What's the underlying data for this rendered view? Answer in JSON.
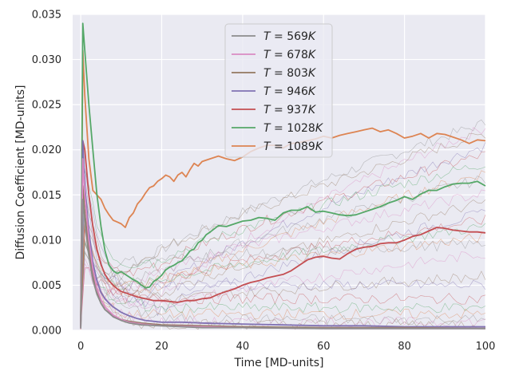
{
  "chart_data": {
    "type": "line",
    "title": "",
    "xlabel": "Time [MD-units]",
    "ylabel": "Diffusion Coefficient [MD-units]",
    "xlim": [
      -2,
      100
    ],
    "ylim": [
      0,
      0.035
    ],
    "xticks": [
      0,
      20,
      40,
      60,
      80,
      100
    ],
    "yticks": [
      0.0,
      0.005,
      0.01,
      0.015,
      0.02,
      0.025,
      0.03,
      0.035
    ],
    "xtick_labels": [
      "0",
      "20",
      "40",
      "60",
      "80",
      "100"
    ],
    "ytick_labels": [
      "0.000",
      "0.005",
      "0.010",
      "0.015",
      "0.020",
      "0.025",
      "0.030",
      "0.035"
    ],
    "grid": true,
    "background": "#eaeaf2",
    "legend_position": "top-center",
    "legend": [
      {
        "T": "569",
        "color": "#8c8c8c"
      },
      {
        "T": "678",
        "color": "#da8bc3"
      },
      {
        "T": "803",
        "color": "#937860"
      },
      {
        "T": "946",
        "color": "#8172b3"
      },
      {
        "T": "937",
        "color": "#c44e52"
      },
      {
        "T": "1028",
        "color": "#55a868"
      },
      {
        "T": "1089",
        "color": "#dd8452"
      }
    ],
    "series": [
      {
        "name": "T = 1089K",
        "color": "#dd8452",
        "points": [
          [
            0,
            0.0008
          ],
          [
            0.5,
            0.031
          ],
          [
            1,
            0.026
          ],
          [
            2,
            0.019
          ],
          [
            3,
            0.0155
          ],
          [
            4,
            0.015
          ],
          [
            5,
            0.0145
          ],
          [
            6,
            0.0135
          ],
          [
            7,
            0.0128
          ],
          [
            8,
            0.0122
          ],
          [
            9,
            0.012
          ],
          [
            10,
            0.0118
          ],
          [
            11,
            0.0114
          ],
          [
            12,
            0.0125
          ],
          [
            13,
            0.013
          ],
          [
            14,
            0.014
          ],
          [
            15,
            0.0145
          ],
          [
            16,
            0.0152
          ],
          [
            17,
            0.0158
          ],
          [
            18,
            0.016
          ],
          [
            19,
            0.0165
          ],
          [
            20,
            0.0168
          ],
          [
            21,
            0.0172
          ],
          [
            22,
            0.017
          ],
          [
            23,
            0.0165
          ],
          [
            24,
            0.0172
          ],
          [
            25,
            0.0175
          ],
          [
            26,
            0.017
          ],
          [
            27,
            0.0178
          ],
          [
            28,
            0.0185
          ],
          [
            29,
            0.0182
          ],
          [
            30,
            0.0187
          ],
          [
            32,
            0.019
          ],
          [
            34,
            0.0193
          ],
          [
            36,
            0.019
          ],
          [
            38,
            0.0188
          ],
          [
            40,
            0.0192
          ],
          [
            42,
            0.0198
          ],
          [
            44,
            0.0202
          ],
          [
            46,
            0.0205
          ],
          [
            48,
            0.0205
          ],
          [
            50,
            0.0202
          ],
          [
            52,
            0.0207
          ],
          [
            54,
            0.0208
          ],
          [
            56,
            0.021
          ],
          [
            58,
            0.0212
          ],
          [
            60,
            0.0215
          ],
          [
            62,
            0.0213
          ],
          [
            64,
            0.0216
          ],
          [
            66,
            0.0218
          ],
          [
            68,
            0.022
          ],
          [
            70,
            0.0222
          ],
          [
            72,
            0.0224
          ],
          [
            74,
            0.022
          ],
          [
            76,
            0.0222
          ],
          [
            78,
            0.0218
          ],
          [
            80,
            0.0213
          ],
          [
            82,
            0.0215
          ],
          [
            84,
            0.0218
          ],
          [
            86,
            0.0213
          ],
          [
            88,
            0.0218
          ],
          [
            90,
            0.0217
          ],
          [
            92,
            0.0214
          ],
          [
            94,
            0.0211
          ],
          [
            96,
            0.0207
          ],
          [
            98,
            0.0211
          ],
          [
            100,
            0.021
          ]
        ]
      },
      {
        "name": "T = 1028K",
        "color": "#55a868",
        "points": [
          [
            0,
            0.0005
          ],
          [
            0.5,
            0.034
          ],
          [
            1,
            0.031
          ],
          [
            2,
            0.025
          ],
          [
            3,
            0.02
          ],
          [
            4,
            0.015
          ],
          [
            5,
            0.0115
          ],
          [
            6,
            0.0088
          ],
          [
            7,
            0.0072
          ],
          [
            8,
            0.0066
          ],
          [
            9,
            0.0063
          ],
          [
            10,
            0.0065
          ],
          [
            11,
            0.0062
          ],
          [
            12,
            0.0059
          ],
          [
            13,
            0.0056
          ],
          [
            14,
            0.0054
          ],
          [
            15,
            0.005
          ],
          [
            16,
            0.0047
          ],
          [
            17,
            0.0048
          ],
          [
            18,
            0.0054
          ],
          [
            19,
            0.0057
          ],
          [
            20,
            0.0061
          ],
          [
            21,
            0.0067
          ],
          [
            22,
            0.007
          ],
          [
            23,
            0.0072
          ],
          [
            24,
            0.0075
          ],
          [
            25,
            0.0077
          ],
          [
            26,
            0.0082
          ],
          [
            27,
            0.0088
          ],
          [
            28,
            0.009
          ],
          [
            29,
            0.0097
          ],
          [
            30,
            0.01
          ],
          [
            31,
            0.0106
          ],
          [
            32,
            0.0109
          ],
          [
            34,
            0.0116
          ],
          [
            36,
            0.0115
          ],
          [
            38,
            0.0118
          ],
          [
            40,
            0.0121
          ],
          [
            42,
            0.0122
          ],
          [
            44,
            0.0125
          ],
          [
            46,
            0.0124
          ],
          [
            48,
            0.0122
          ],
          [
            50,
            0.013
          ],
          [
            52,
            0.0133
          ],
          [
            54,
            0.0133
          ],
          [
            56,
            0.0137
          ],
          [
            58,
            0.0131
          ],
          [
            60,
            0.0132
          ],
          [
            62,
            0.013
          ],
          [
            64,
            0.0128
          ],
          [
            66,
            0.0127
          ],
          [
            68,
            0.0128
          ],
          [
            70,
            0.0131
          ],
          [
            72,
            0.0134
          ],
          [
            74,
            0.0137
          ],
          [
            76,
            0.0141
          ],
          [
            78,
            0.0144
          ],
          [
            80,
            0.0148
          ],
          [
            82,
            0.0145
          ],
          [
            84,
            0.0151
          ],
          [
            86,
            0.0155
          ],
          [
            88,
            0.0155
          ],
          [
            90,
            0.0159
          ],
          [
            92,
            0.0162
          ],
          [
            94,
            0.0163
          ],
          [
            96,
            0.0163
          ],
          [
            98,
            0.0165
          ],
          [
            100,
            0.016
          ]
        ]
      },
      {
        "name": "T = 937K",
        "color": "#c44e52",
        "points": [
          [
            0,
            0.0005
          ],
          [
            0.5,
            0.021
          ],
          [
            1,
            0.02
          ],
          [
            2,
            0.015
          ],
          [
            3,
            0.0115
          ],
          [
            4,
            0.009
          ],
          [
            5,
            0.0073
          ],
          [
            6,
            0.0062
          ],
          [
            7,
            0.0055
          ],
          [
            8,
            0.005
          ],
          [
            9,
            0.0046
          ],
          [
            10,
            0.0043
          ],
          [
            12,
            0.004
          ],
          [
            14,
            0.0037
          ],
          [
            16,
            0.0035
          ],
          [
            18,
            0.0033
          ],
          [
            20,
            0.0033
          ],
          [
            22,
            0.0032
          ],
          [
            24,
            0.0031
          ],
          [
            26,
            0.0033
          ],
          [
            28,
            0.0033
          ],
          [
            30,
            0.0035
          ],
          [
            32,
            0.0036
          ],
          [
            34,
            0.004
          ],
          [
            36,
            0.0043
          ],
          [
            38,
            0.0046
          ],
          [
            40,
            0.005
          ],
          [
            42,
            0.0053
          ],
          [
            44,
            0.0055
          ],
          [
            46,
            0.0058
          ],
          [
            48,
            0.006
          ],
          [
            50,
            0.0062
          ],
          [
            52,
            0.0066
          ],
          [
            54,
            0.0072
          ],
          [
            56,
            0.0078
          ],
          [
            58,
            0.0081
          ],
          [
            60,
            0.0082
          ],
          [
            62,
            0.008
          ],
          [
            64,
            0.0079
          ],
          [
            66,
            0.0085
          ],
          [
            68,
            0.009
          ],
          [
            70,
            0.0092
          ],
          [
            72,
            0.0093
          ],
          [
            74,
            0.0096
          ],
          [
            76,
            0.0097
          ],
          [
            78,
            0.0097
          ],
          [
            80,
            0.01
          ],
          [
            82,
            0.0104
          ],
          [
            84,
            0.0106
          ],
          [
            86,
            0.011
          ],
          [
            88,
            0.0114
          ],
          [
            90,
            0.0113
          ],
          [
            92,
            0.0111
          ],
          [
            94,
            0.011
          ],
          [
            96,
            0.0109
          ],
          [
            98,
            0.0109
          ],
          [
            100,
            0.0108
          ]
        ]
      },
      {
        "name": "T = 946K",
        "color": "#8172b3",
        "points": [
          [
            0,
            0.0003
          ],
          [
            0.5,
            0.021
          ],
          [
            1,
            0.016
          ],
          [
            2,
            0.011
          ],
          [
            3,
            0.0075
          ],
          [
            4,
            0.0055
          ],
          [
            5,
            0.0042
          ],
          [
            6,
            0.0035
          ],
          [
            7,
            0.003
          ],
          [
            8,
            0.0026
          ],
          [
            10,
            0.002
          ],
          [
            12,
            0.0016
          ],
          [
            14,
            0.0013
          ],
          [
            16,
            0.0011
          ],
          [
            18,
            0.001
          ],
          [
            20,
            0.0009
          ],
          [
            25,
            0.0009
          ],
          [
            30,
            0.0008
          ],
          [
            40,
            0.0007
          ],
          [
            50,
            0.0006
          ],
          [
            60,
            0.0005
          ],
          [
            70,
            0.0005
          ],
          [
            80,
            0.0004
          ],
          [
            90,
            0.0004
          ],
          [
            100,
            0.0004
          ]
        ]
      },
      {
        "name": "T = 803K",
        "color": "#937860",
        "points": [
          [
            0,
            0.0003
          ],
          [
            0.5,
            0.016
          ],
          [
            1,
            0.013
          ],
          [
            2,
            0.009
          ],
          [
            3,
            0.006
          ],
          [
            4,
            0.0042
          ],
          [
            5,
            0.003
          ],
          [
            6,
            0.0023
          ],
          [
            8,
            0.0016
          ],
          [
            10,
            0.0012
          ],
          [
            12,
            0.001
          ],
          [
            15,
            0.0008
          ],
          [
            20,
            0.0006
          ],
          [
            30,
            0.0005
          ],
          [
            40,
            0.0004
          ],
          [
            60,
            0.0003
          ],
          [
            80,
            0.0003
          ],
          [
            100,
            0.0002
          ]
        ]
      },
      {
        "name": "T = 678K",
        "color": "#da8bc3",
        "points": [
          [
            0,
            0.0002
          ],
          [
            0.5,
            0.019
          ],
          [
            1,
            0.015
          ],
          [
            2,
            0.01
          ],
          [
            3,
            0.0068
          ],
          [
            4,
            0.0046
          ],
          [
            5,
            0.0034
          ],
          [
            6,
            0.0026
          ],
          [
            8,
            0.0017
          ],
          [
            10,
            0.0012
          ],
          [
            12,
            0.0009
          ],
          [
            15,
            0.0007
          ],
          [
            20,
            0.0005
          ],
          [
            30,
            0.0004
          ],
          [
            40,
            0.0003
          ],
          [
            60,
            0.0002
          ],
          [
            80,
            0.0002
          ],
          [
            100,
            0.0002
          ]
        ]
      },
      {
        "name": "T = 569K",
        "color": "#8c8c8c",
        "points": [
          [
            0,
            0.0002
          ],
          [
            0.5,
            0.0145
          ],
          [
            1,
            0.012
          ],
          [
            2,
            0.0082
          ],
          [
            3,
            0.0056
          ],
          [
            4,
            0.004
          ],
          [
            5,
            0.003
          ],
          [
            6,
            0.0023
          ],
          [
            8,
            0.0015
          ],
          [
            10,
            0.0011
          ],
          [
            12,
            0.0008
          ],
          [
            15,
            0.0006
          ],
          [
            20,
            0.0005
          ],
          [
            30,
            0.0003
          ],
          [
            40,
            0.0003
          ],
          [
            60,
            0.0002
          ],
          [
            80,
            0.0002
          ],
          [
            100,
            0.0002
          ]
        ]
      }
    ]
  }
}
